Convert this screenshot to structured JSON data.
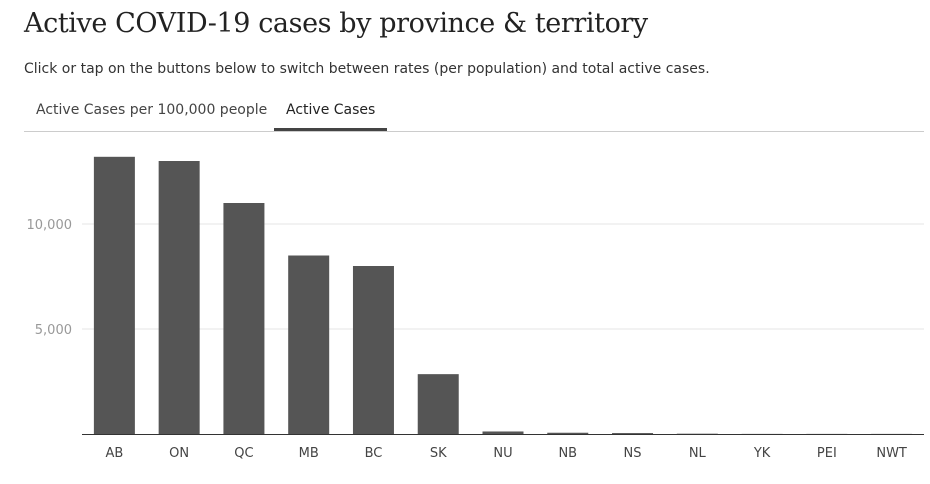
{
  "header": {
    "title": "Active COVID-19 cases by province & territory",
    "subtitle": "Click or tap on the buttons below to switch between rates (per population) and total active cases."
  },
  "tabs": [
    {
      "label": "Active Cases per 100,000 people",
      "selected": false
    },
    {
      "label": "Active Cases",
      "selected": true
    }
  ],
  "colors": {
    "bar": "#555555",
    "axis": "#333333",
    "grid": "#e6e6e6",
    "tick_label": "#999999",
    "category_label": "#444444"
  },
  "chart_data": {
    "type": "bar",
    "title": "",
    "xlabel": "",
    "ylabel": "",
    "categories": [
      "AB",
      "ON",
      "QC",
      "MB",
      "BC",
      "SK",
      "NU",
      "NB",
      "NS",
      "NL",
      "YK",
      "PEI",
      "NWT"
    ],
    "values": [
      13200,
      13000,
      11000,
      8500,
      8000,
      2850,
      120,
      60,
      45,
      15,
      5,
      5,
      5
    ],
    "ylim": [
      0,
      14000
    ],
    "y_ticks": [
      5000,
      10000
    ],
    "y_tick_labels": [
      "5,000",
      "10,000"
    ],
    "grid": true,
    "legend": "none"
  }
}
